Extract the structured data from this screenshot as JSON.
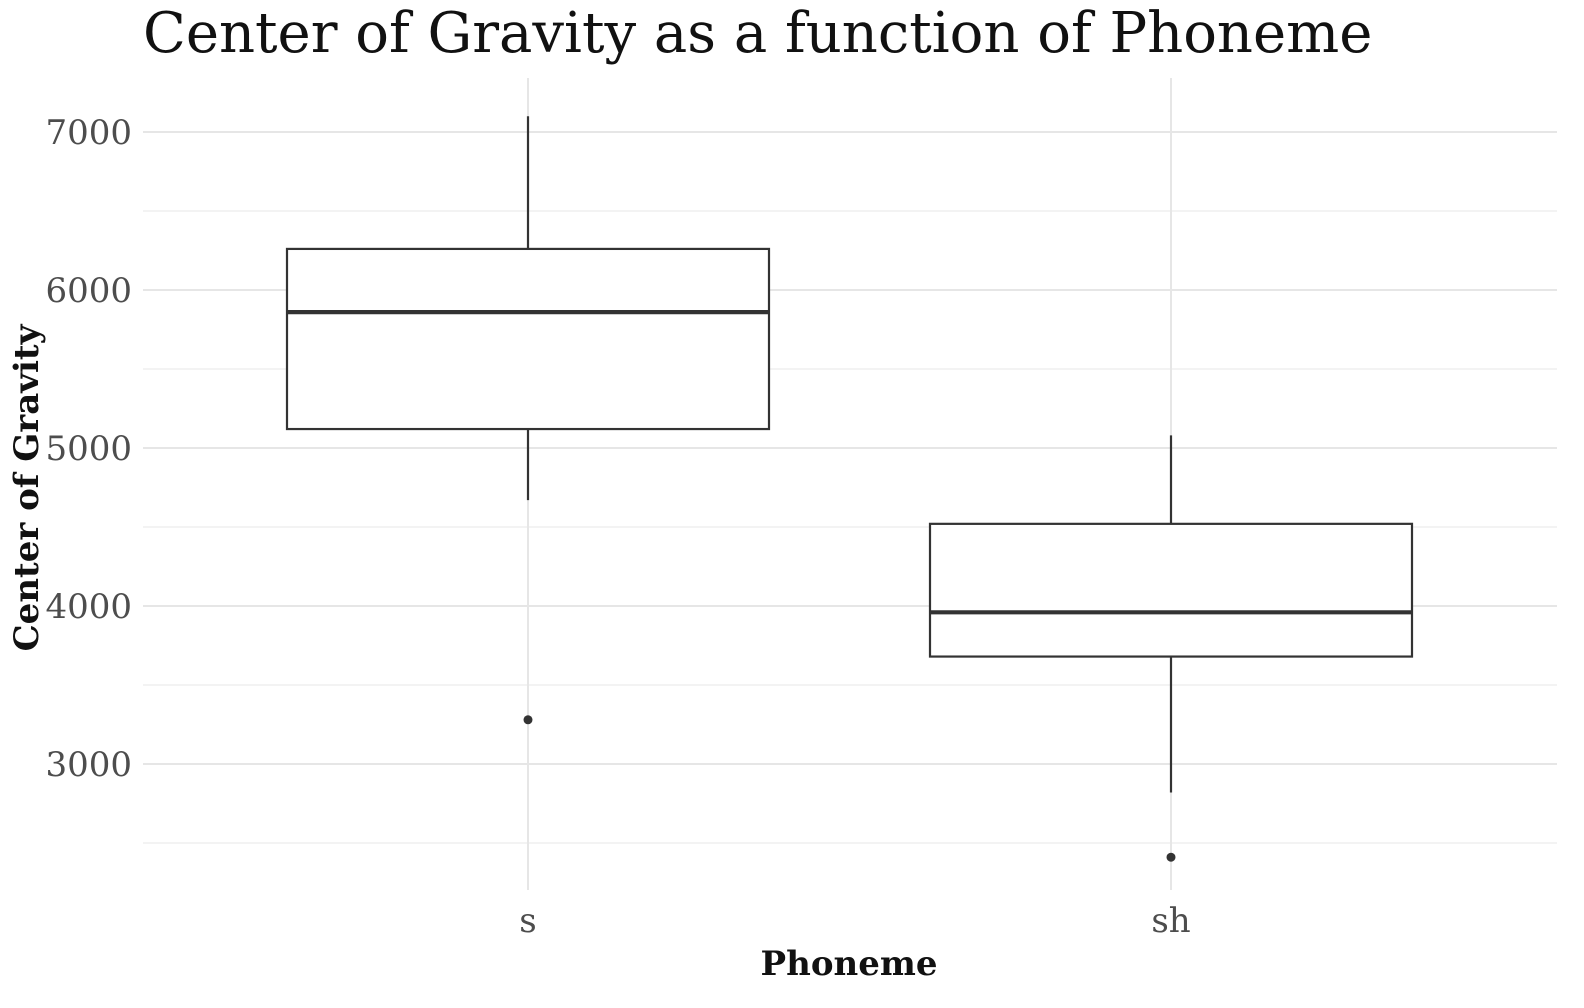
{
  "chart_data": {
    "type": "boxplot",
    "title": "Center of Gravity as a function of Phoneme",
    "xlabel": "Phoneme",
    "ylabel": "Center of Gravity",
    "categories": [
      "s",
      "sh"
    ],
    "boxes": [
      {
        "category": "s",
        "whisker_low": 4670,
        "q1": 5120,
        "median": 5860,
        "q3": 6260,
        "whisker_high": 7100,
        "outliers": [
          3280
        ]
      },
      {
        "category": "sh",
        "whisker_low": 2820,
        "q1": 3680,
        "median": 3960,
        "q3": 4520,
        "whisker_high": 5080,
        "outliers": [
          2410
        ]
      }
    ],
    "yticks": [
      "3000",
      "4000",
      "5000",
      "6000",
      "7000"
    ],
    "ytick_values": [
      3000,
      4000,
      5000,
      6000,
      7000
    ],
    "ylim": [
      2200,
      7350
    ],
    "grid": true,
    "colors": {
      "box_fill": "#ffffff",
      "box_stroke": "#333333",
      "grid": "#e6e6e6",
      "tick_text": "#4d4d4d"
    }
  }
}
